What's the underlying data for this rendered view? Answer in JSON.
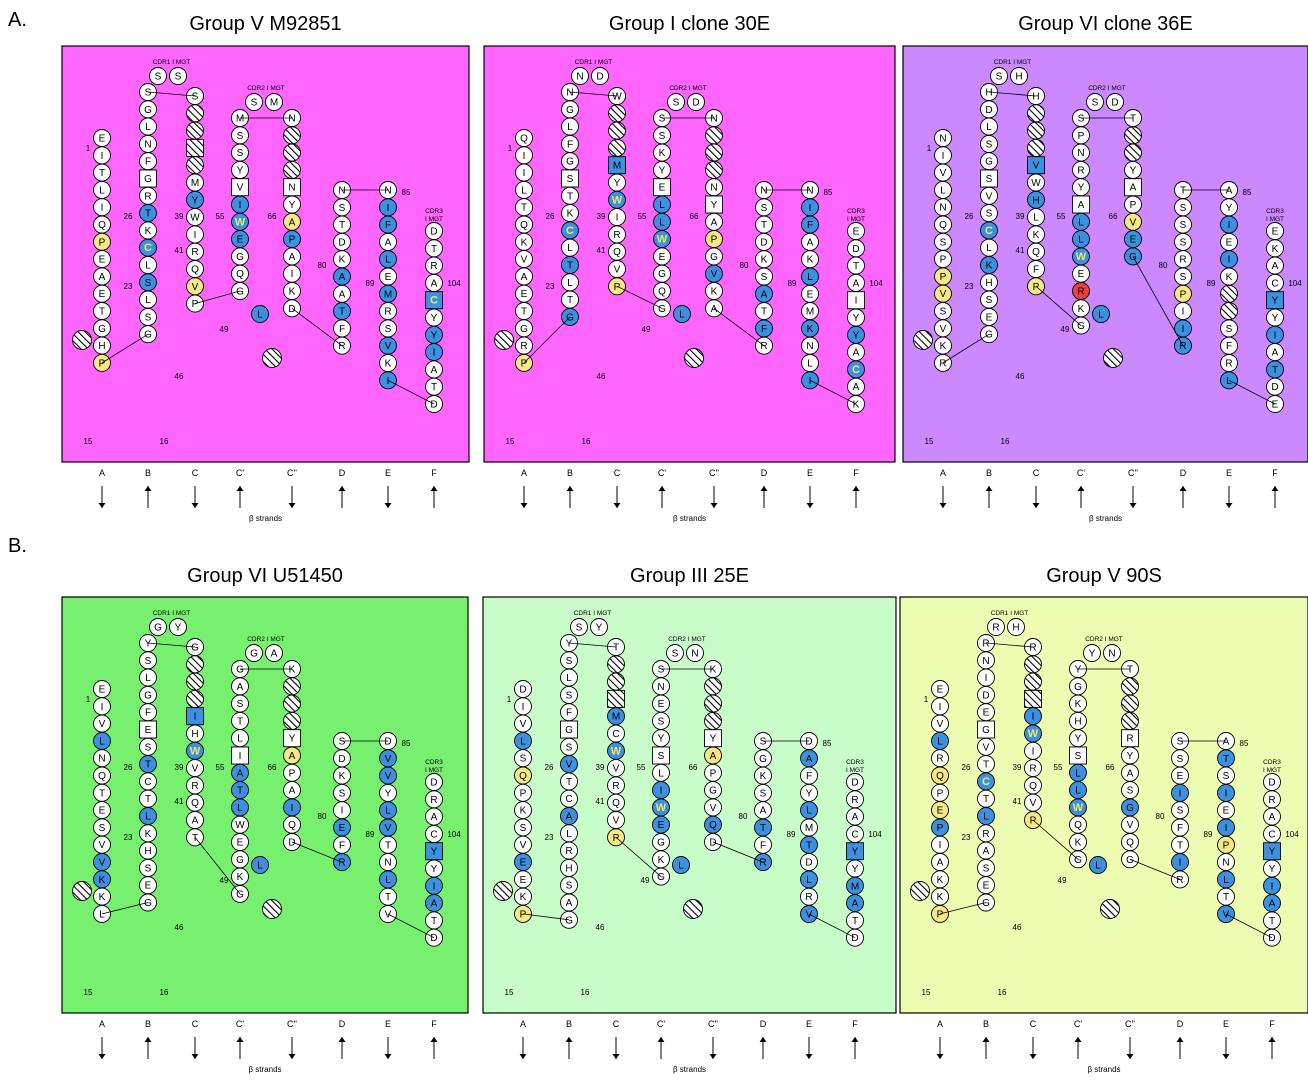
{
  "section_labels": [
    "A.",
    "B."
  ],
  "strand_labels": [
    "A",
    "B",
    "C",
    "C'",
    "C''",
    "D",
    "E",
    "F"
  ],
  "strand_dirs": [
    "down",
    "up",
    "down",
    "up",
    "down",
    "up",
    "down",
    "up"
  ],
  "beta_label": "β strands",
  "cdr_labels": {
    "cdr1": "CDR1 I MGT",
    "cdr2": "CDR2 I MGT",
    "cdr3a": "CDR3",
    "cdr3b": "I MGT"
  },
  "numbers": {
    "n1": "1",
    "n15": "15",
    "n16": "16",
    "n23": "23",
    "n26": "26",
    "n39": "39",
    "n41": "41",
    "n46": "46",
    "n49": "49",
    "n55": "55",
    "n66": "66",
    "n80": "80",
    "n85": "85",
    "n89": "89",
    "n104": "104"
  },
  "colors": {
    "white": "#ffffff",
    "blue": "#3d8fe0",
    "yellow": "#f5e987",
    "red": "#e8413b",
    "hatch": "#000000"
  },
  "panels": [
    {
      "title": "Group V M92851",
      "bg": "#ff66ff",
      "colA": "EITLIQPEAETGHP",
      "colB": "SGLNFGRTKCLSLSG",
      "colC": "S~~~~MYWIRQVP",
      "colCp": "MSSYVIWEGQG",
      "colCpp": "N~~~NYAPAIKD",
      "colD": "NSTDKAATFR",
      "colE": "NIFALEMRSVKI",
      "colF": "DTRACYYIATD",
      "cdr1Top": "SS",
      "cdr2Top": "SM",
      "hatA": true,
      "hatCpp": true,
      "Lextra": true,
      "blue": [
        "B8",
        "B10",
        "B12",
        "C4",
        "C7",
        "Cp6",
        "Cp7",
        "Cp8",
        "Cpp8",
        "D6",
        "D8",
        "E2",
        "E3",
        "E5",
        "E7",
        "E10",
        "E12",
        "F5",
        "F7",
        "F8",
        "Lx"
      ],
      "yellow": [
        "A7",
        "A14",
        "C12",
        "Cpp7"
      ],
      "red": [],
      "squares": [
        "B6",
        "C4",
        "Cp5",
        "Cpp5",
        "F5"
      ]
    },
    {
      "title": "Group I clone 30E",
      "bg": "#ff66ff",
      "colA": "QIILTQKVAETGRP",
      "colB": "NGLFGSTKCLTLTG",
      "colC": "W~~~MYWIRQVP",
      "colCp": "SSKYELLWEGQG",
      "colCpp": "N~~~NYAPGVKA",
      "colD": "NSTDKSATFR",
      "colE": "NIFAKLEMKNLI",
      "colF": "EDTAIYYACAK",
      "cdr1Top": "ND",
      "cdr2Top": "SD",
      "hatA": true,
      "hatCpp": true,
      "Lextra": true,
      "blue": [
        "B9",
        "B11",
        "B14",
        "C5",
        "C7",
        "Cp6",
        "Cp7",
        "Cp8",
        "Cpp10",
        "D7",
        "D9",
        "E2",
        "E3",
        "E6",
        "E9",
        "E12",
        "F7",
        "F9",
        "Lx"
      ],
      "yellow": [
        "A14",
        "C12",
        "Cpp8"
      ],
      "red": [],
      "squares": [
        "B6",
        "C5",
        "Cp5",
        "Cpp6",
        "F5"
      ]
    },
    {
      "title": "Group VI clone 36E",
      "bg": "#cc88ff",
      "colA": "NIVLNQSPPVSVKR",
      "colB": "HDLSGSVSCLKHSEG",
      "colC": "H~~~VWHLKQFP",
      "colCp": "SPNRYALLWERKG",
      "colCpp": "T~~YAPVEG",
      "colD": "TSSSRSPIIR",
      "colE": "AYIEIK~~SFRL",
      "colF": "EKACYYIATDE",
      "cdr1Top": "SH",
      "cdr2Top": "SD",
      "hatA": true,
      "hatCpp": true,
      "Lextra": true,
      "blue": [
        "B9",
        "B11",
        "C5",
        "C7",
        "Cp7",
        "Cp8",
        "Cp9",
        "Cpp8",
        "Cpp9",
        "D9",
        "D10",
        "E3",
        "E5",
        "E12",
        "F5",
        "F7",
        "F9"
      ],
      "yellow": [
        "A9",
        "A10",
        "C12",
        "Cpp7",
        "D7"
      ],
      "red": [
        "Cp11"
      ],
      "squares": [
        "B6",
        "C5",
        "Cp6",
        "Cpp5",
        "F5"
      ]
    },
    {
      "title": "Group VI U51450",
      "bg": "#77f06f",
      "colA": "EIVLNQTESVVKKL",
      "colB": "YSLGFESTCTLKHSEG",
      "colC": "G~~~IHWVRQAT",
      "colCp": "GASTLIATLWEGKG",
      "colCpp": "K~~~YAPAIQD",
      "colD": "SDKSIEFR",
      "colE": "DVVYLVTNLTV",
      "colF": "DRACYYIATD",
      "cdr1Top": "GY",
      "cdr2Top": "GA",
      "hatA": true,
      "hatCpp": true,
      "Lextra": true,
      "blue": [
        "A4",
        "A11",
        "A12",
        "B8",
        "B11",
        "C5",
        "C7",
        "Cp7",
        "Cp8",
        "Cp9",
        "Cpp9",
        "D6",
        "D8",
        "E2",
        "E3",
        "E5",
        "E6",
        "E9",
        "F5",
        "F7",
        "F8"
      ],
      "yellow": [
        "Cpp6"
      ],
      "red": [],
      "squares": [
        "B6",
        "C5",
        "Cp6",
        "Cpp5",
        "F5"
      ]
    },
    {
      "title": "Group III 25E",
      "bg": "#c8fcc8",
      "colA": "DIVLSQPKSVEEKP",
      "colB": "YSLSFGSVTCALRHSAG",
      "colC": "T~~~MCWVRQVP",
      "colCp": "SNESYSLIWEGKG",
      "colCpp": "K~~~YAPGVQD",
      "colD": "SGKSATFR",
      "colE": "DAFYLMTDLRV",
      "colF": "DRACYYMATD",
      "cdr1Top": "SY",
      "cdr2Top": "SN",
      "hatA": true,
      "hatCpp": true,
      "Lextra": true,
      "blue": [
        "A4",
        "A11",
        "B8",
        "B11",
        "C4",
        "C5",
        "C7",
        "Cp8",
        "Cp9",
        "Cp10",
        "Cpp10",
        "D6",
        "D8",
        "E2",
        "E5",
        "E7",
        "E9",
        "E11",
        "F5",
        "F7",
        "F8"
      ],
      "yellow": [
        "A6",
        "A14",
        "C12",
        "Cpp6"
      ],
      "red": [],
      "squares": [
        "B6",
        "C4",
        "Cp6",
        "Cpp5",
        "F5"
      ]
    },
    {
      "title": "Group V 90S",
      "bg": "#ecfcb0",
      "colA": "EIVLRQPEPIAKKP",
      "colB": "RNIDEGVTCTLRASEG",
      "colC": "R~~~IWIRQVP",
      "colCp": "YGKHYSLLWQKG",
      "colCpp": "T~~~RYASGVQG",
      "colD": "SSEISFTIR",
      "colE": "ATSIEIPNLTV",
      "colF": "DRACYYIATD",
      "cdr1Top": "RH",
      "cdr2Top": "YN",
      "hatA": true,
      "hatCpp": true,
      "Lextra": true,
      "blue": [
        "A4",
        "A9",
        "B9",
        "B11",
        "C4",
        "C5",
        "C6",
        "Cp7",
        "Cp8",
        "Cp9",
        "Cpp9",
        "D4",
        "D8",
        "E2",
        "E4",
        "E6",
        "E9",
        "E11",
        "F5",
        "F7",
        "F8"
      ],
      "yellow": [
        "A6",
        "A8",
        "A14",
        "C11",
        "E7"
      ],
      "red": [],
      "squares": [
        "B6",
        "C4",
        "Cp6",
        "Cpp5",
        "F5"
      ]
    }
  ]
}
